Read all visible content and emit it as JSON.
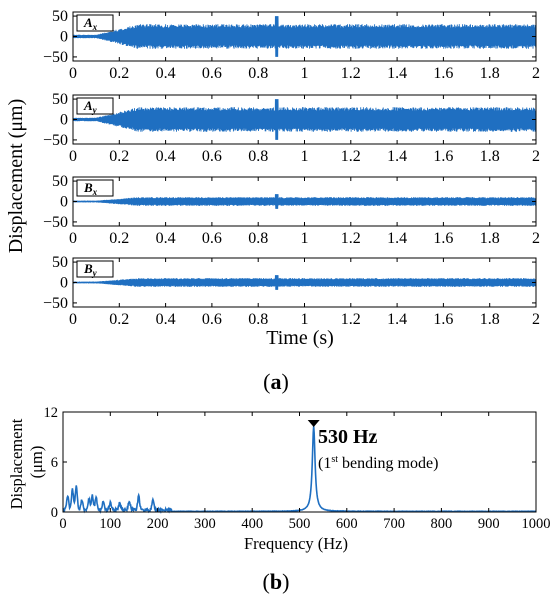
{
  "chart_data": [
    {
      "type": "line",
      "panel": "a",
      "caption": "a",
      "xlabel": "Time (s)",
      "ylabel": "Displacement (μm)",
      "xlim": [
        0,
        2
      ],
      "x_ticks": [
        0,
        0.2,
        0.4,
        0.6,
        0.8,
        1,
        1.2,
        1.4,
        1.6,
        1.8,
        2
      ],
      "x_tick_labels": [
        "0",
        "0.2",
        "0.4",
        "0.6",
        "0.8",
        "1",
        "1.2",
        "1.4",
        "1.6",
        "1.8",
        "2"
      ],
      "color": "#1f6fc1",
      "subplots": [
        {
          "tag_main": "A",
          "tag_sub": "x",
          "ylim": [
            -60,
            60
          ],
          "y_ticks": [
            -50,
            0,
            50
          ],
          "y_tick_labels": [
            "−50",
            "0",
            "50"
          ],
          "onset_s": 0.1,
          "steady_amplitude": 28,
          "initial_amplitude": 4,
          "spike_t": 0.88,
          "spike_amplitude": 50
        },
        {
          "tag_main": "A",
          "tag_sub": "y",
          "ylim": [
            -60,
            60
          ],
          "y_ticks": [
            -50,
            0,
            50
          ],
          "y_tick_labels": [
            "−50",
            "0",
            "50"
          ],
          "onset_s": 0.1,
          "steady_amplitude": 28,
          "initial_amplitude": 4,
          "spike_t": 0.88,
          "spike_amplitude": 50
        },
        {
          "tag_main": "B",
          "tag_sub": "x",
          "ylim": [
            -60,
            60
          ],
          "y_ticks": [
            -50,
            0,
            50
          ],
          "y_tick_labels": [
            "−50",
            "0",
            "50"
          ],
          "onset_s": 0.1,
          "steady_amplitude": 10,
          "initial_amplitude": 2,
          "spike_t": 0.88,
          "spike_amplitude": 18
        },
        {
          "tag_main": "B",
          "tag_sub": "y",
          "ylim": [
            -60,
            60
          ],
          "y_ticks": [
            -50,
            0,
            50
          ],
          "y_tick_labels": [
            "−50",
            "0",
            "50"
          ],
          "onset_s": 0.1,
          "steady_amplitude": 10,
          "initial_amplitude": 2,
          "spike_t": 0.88,
          "spike_amplitude": 18
        }
      ]
    },
    {
      "type": "line",
      "panel": "b",
      "caption": "b",
      "xlabel": "Frequency (Hz)",
      "ylabel_lines": [
        "Displacement",
        "(μm)"
      ],
      "xlim": [
        0,
        1000
      ],
      "ylim": [
        0,
        12
      ],
      "x_ticks": [
        0,
        100,
        200,
        300,
        400,
        500,
        600,
        700,
        800,
        900,
        1000
      ],
      "x_tick_labels": [
        "0",
        "100",
        "200",
        "300",
        "400",
        "500",
        "600",
        "700",
        "800",
        "900",
        "1000"
      ],
      "y_ticks": [
        0,
        6,
        12
      ],
      "y_tick_labels": [
        "0",
        "6",
        "12"
      ],
      "color": "#1f6fc1",
      "peak": {
        "x": 530,
        "y": 10.2
      },
      "low_freq_peaks": [
        {
          "x": 10,
          "y": 1.6
        },
        {
          "x": 20,
          "y": 2.5
        },
        {
          "x": 28,
          "y": 2.8
        },
        {
          "x": 40,
          "y": 1.2
        },
        {
          "x": 55,
          "y": 1.3
        },
        {
          "x": 62,
          "y": 1.7
        },
        {
          "x": 70,
          "y": 1.5
        },
        {
          "x": 85,
          "y": 1.0
        },
        {
          "x": 100,
          "y": 0.9
        },
        {
          "x": 120,
          "y": 0.8
        },
        {
          "x": 140,
          "y": 1.1
        },
        {
          "x": 160,
          "y": 1.6
        },
        {
          "x": 190,
          "y": 1.2
        }
      ],
      "annotation": {
        "value": "530 Hz",
        "note_prefix": "(1",
        "note_sup": "st",
        "note_suffix": " bending mode)"
      }
    }
  ]
}
